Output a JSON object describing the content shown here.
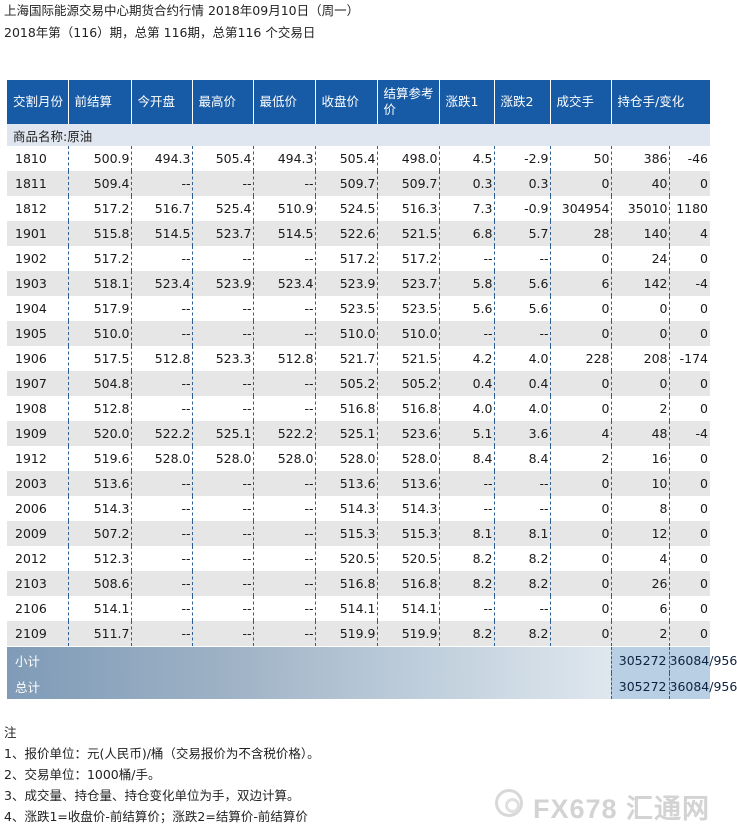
{
  "title": "上海国际能源交易中心期货合约行情 2018年09月10日（周一）",
  "subtitle": "2018年第（116）期，总第 116期，总第116 个交易日",
  "headers": [
    "交割月份",
    "前结算",
    "今开盘",
    "最高价",
    "最低价",
    "收盘价",
    "结算参考价",
    "涨跌1",
    "涨跌2",
    "成交手",
    "持仓手/变化"
  ],
  "category": "商品名称:原油",
  "rows": [
    [
      "1810",
      "500.9",
      "494.3",
      "505.4",
      "494.3",
      "505.4",
      "498.0",
      "4.5",
      "-2.9",
      "50",
      "386",
      "-46"
    ],
    [
      "1811",
      "509.4",
      "--",
      "--",
      "--",
      "509.7",
      "509.7",
      "0.3",
      "0.3",
      "0",
      "40",
      "0"
    ],
    [
      "1812",
      "517.2",
      "516.7",
      "525.4",
      "510.9",
      "524.5",
      "516.3",
      "7.3",
      "-0.9",
      "304954",
      "35010",
      "1180"
    ],
    [
      "1901",
      "515.8",
      "514.5",
      "523.7",
      "514.5",
      "522.6",
      "521.5",
      "6.8",
      "5.7",
      "28",
      "140",
      "4"
    ],
    [
      "1902",
      "517.2",
      "--",
      "--",
      "--",
      "517.2",
      "517.2",
      "--",
      "--",
      "0",
      "24",
      "0"
    ],
    [
      "1903",
      "518.1",
      "523.4",
      "523.9",
      "523.4",
      "523.9",
      "523.7",
      "5.8",
      "5.6",
      "6",
      "142",
      "-4"
    ],
    [
      "1904",
      "517.9",
      "--",
      "--",
      "--",
      "523.5",
      "523.5",
      "5.6",
      "5.6",
      "0",
      "0",
      "0"
    ],
    [
      "1905",
      "510.0",
      "--",
      "--",
      "--",
      "510.0",
      "510.0",
      "--",
      "--",
      "0",
      "0",
      "0"
    ],
    [
      "1906",
      "517.5",
      "512.8",
      "523.3",
      "512.8",
      "521.7",
      "521.5",
      "4.2",
      "4.0",
      "228",
      "208",
      "-174"
    ],
    [
      "1907",
      "504.8",
      "--",
      "--",
      "--",
      "505.2",
      "505.2",
      "0.4",
      "0.4",
      "0",
      "0",
      "0"
    ],
    [
      "1908",
      "512.8",
      "--",
      "--",
      "--",
      "516.8",
      "516.8",
      "4.0",
      "4.0",
      "0",
      "2",
      "0"
    ],
    [
      "1909",
      "520.0",
      "522.2",
      "525.1",
      "522.2",
      "525.1",
      "523.6",
      "5.1",
      "3.6",
      "4",
      "48",
      "-4"
    ],
    [
      "1912",
      "519.6",
      "528.0",
      "528.0",
      "528.0",
      "528.0",
      "528.0",
      "8.4",
      "8.4",
      "2",
      "16",
      "0"
    ],
    [
      "2003",
      "513.6",
      "--",
      "--",
      "--",
      "513.6",
      "513.6",
      "--",
      "--",
      "0",
      "10",
      "0"
    ],
    [
      "2006",
      "514.3",
      "--",
      "--",
      "--",
      "514.3",
      "514.3",
      "--",
      "--",
      "0",
      "8",
      "0"
    ],
    [
      "2009",
      "507.2",
      "--",
      "--",
      "--",
      "515.3",
      "515.3",
      "8.1",
      "8.1",
      "0",
      "12",
      "0"
    ],
    [
      "2012",
      "512.3",
      "--",
      "--",
      "--",
      "520.5",
      "520.5",
      "8.2",
      "8.2",
      "0",
      "4",
      "0"
    ],
    [
      "2103",
      "508.6",
      "--",
      "--",
      "--",
      "516.8",
      "516.8",
      "8.2",
      "8.2",
      "0",
      "26",
      "0"
    ],
    [
      "2106",
      "514.1",
      "--",
      "--",
      "--",
      "514.1",
      "514.1",
      "--",
      "--",
      "0",
      "6",
      "0"
    ],
    [
      "2109",
      "511.7",
      "--",
      "--",
      "--",
      "519.9",
      "519.9",
      "8.2",
      "8.2",
      "0",
      "2",
      "0"
    ]
  ],
  "summary": [
    {
      "label": "小计",
      "volume": "305272",
      "position": "36084/956"
    },
    {
      "label": "总计",
      "volume": "305272",
      "position": "36084/956"
    }
  ],
  "notes": {
    "heading": "注",
    "lines": [
      "1、报价单位：元(人民币)/桶（交易报价为不含税价格）。",
      "2、交易单位：1000桶/手。",
      "3、成交量、持仓量、持仓变化单位为手，双边计算。",
      "4、涨跌1=收盘价-前结算价；涨跌2=结算价-前结算价"
    ]
  },
  "watermark": "FX678 汇通网",
  "colors": {
    "header_bg": "#175aa6",
    "even_row": "#e6e6e6",
    "category_bg": "#dfe6ef",
    "divider": "#2e5f94"
  }
}
